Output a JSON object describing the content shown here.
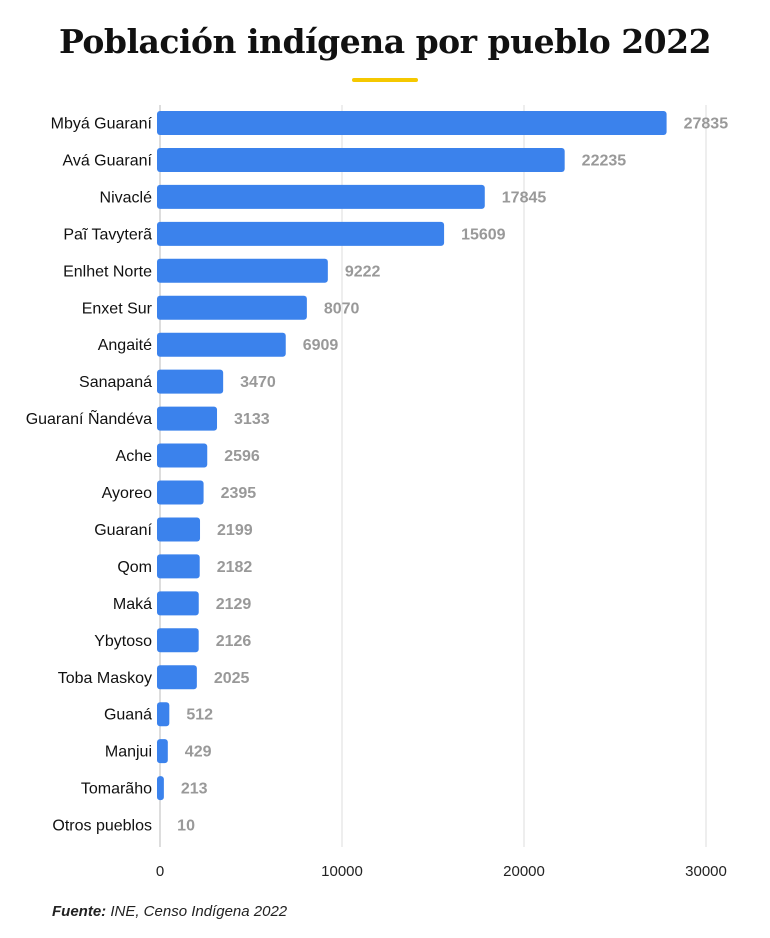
{
  "chart_data": {
    "type": "bar",
    "orientation": "horizontal",
    "title": "Población indígena por pueblo 2022",
    "categories": [
      "Mbyá Guaraní",
      "Avá Guaraní",
      "Nivaclé",
      "Paĩ Tavyterã",
      "Enlhet Norte",
      "Enxet Sur",
      "Angaité",
      "Sanapaná",
      "Guaraní Ñandéva",
      "Ache",
      "Ayoreo",
      "Guaraní",
      "Qom",
      "Maká",
      "Ybytoso",
      "Toba Maskoy",
      "Guaná",
      "Manjui",
      "Tomarãho",
      "Otros pueblos"
    ],
    "values": [
      27835,
      22235,
      17845,
      15609,
      9222,
      8070,
      6909,
      3470,
      3133,
      2596,
      2395,
      2199,
      2182,
      2129,
      2126,
      2025,
      512,
      429,
      213,
      10
    ],
    "xlim": [
      0,
      30000
    ],
    "xticks": [
      0,
      10000,
      20000,
      30000
    ],
    "xlabel": "",
    "ylabel": "",
    "grid": true,
    "bar_color": "#3b82ec",
    "value_label_color": "#999999",
    "accent_color": "#f5c800"
  },
  "source": {
    "label": "Fuente:",
    "text": " INE, Censo Indígena 2022"
  }
}
